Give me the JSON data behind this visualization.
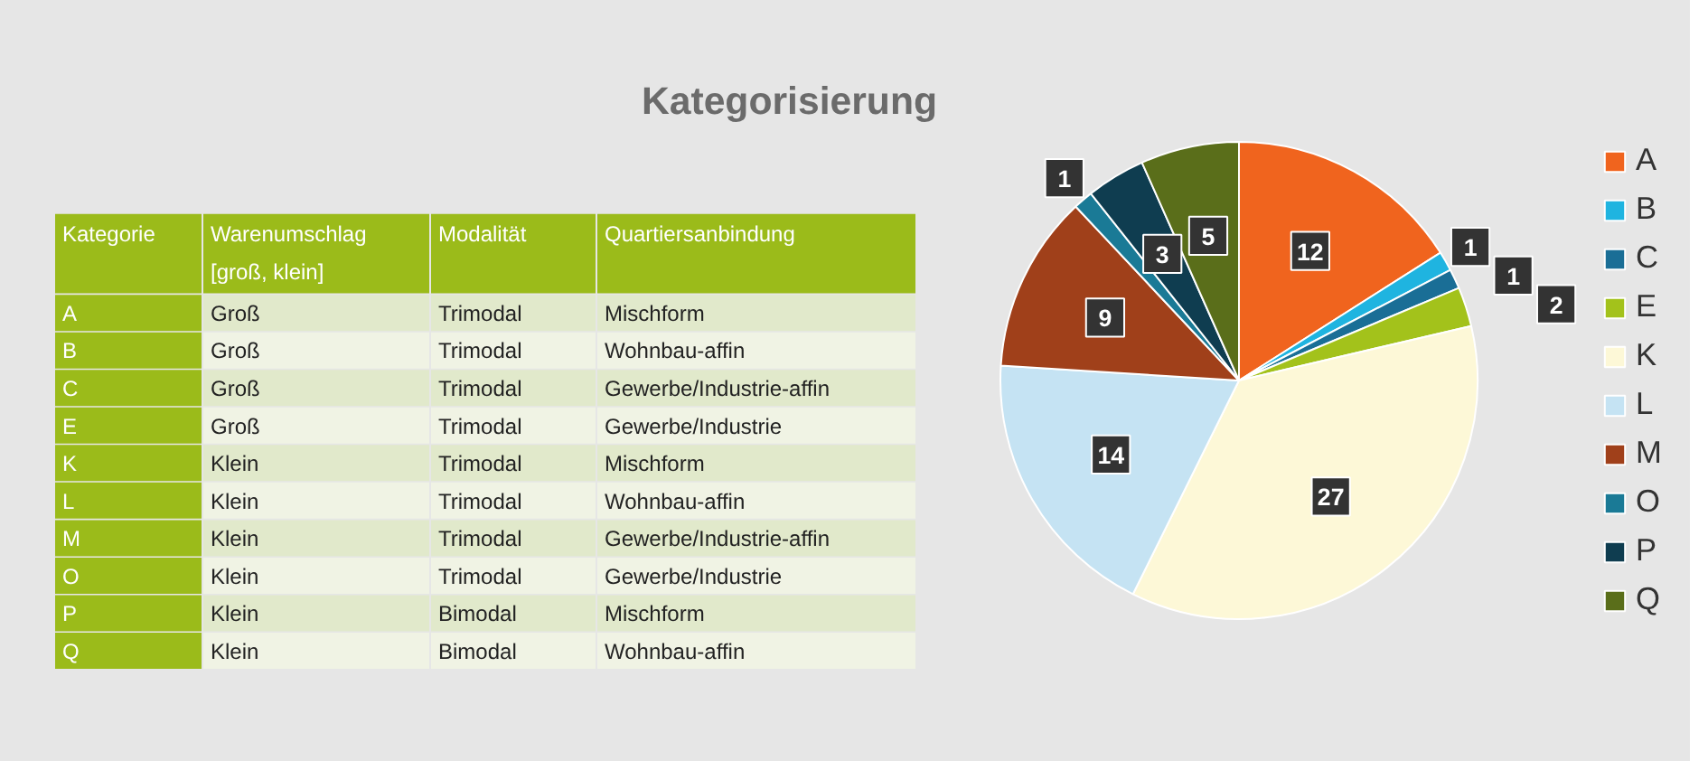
{
  "chart_data": [
    {
      "type": "other",
      "title": "Kategorisierung",
      "categories": [
        "Kategorie",
        "Warenumschlag\n[groß, klein]",
        "Modalität",
        "Quartiersanbindung"
      ],
      "annotations": [
        "A",
        "Groß",
        "Trimodal",
        "Mischform",
        "B",
        "Groß",
        "Trimodal",
        "Wohnbau-affin",
        "C",
        "Groß",
        "Trimodal",
        "Gewerbe/Industrie-affin",
        "E",
        "Groß",
        "Trimodal",
        "Gewerbe/Industrie",
        "K",
        "Klein",
        "Trimodal",
        "Mischform",
        "L",
        "Klein",
        "Trimodal",
        "Wohnbau-affin",
        "M",
        "Klein",
        "Trimodal",
        "Gewerbe/Industrie-affin",
        "O",
        "Klein",
        "Trimodal",
        "Gewerbe/Industrie",
        "P",
        "Klein",
        "Bimodal",
        "Mischform",
        "Q",
        "Klein",
        "Bimodal",
        "Wohnbau-affin"
      ]
    },
    {
      "type": "pie",
      "categories": [
        "A",
        "B",
        "C",
        "E",
        "K",
        "L",
        "M",
        "O",
        "P",
        "Q"
      ],
      "values": [
        12,
        1,
        1,
        2,
        27,
        14,
        9,
        1,
        3,
        5
      ],
      "colors": [
        "#f0641e",
        "#1fb4e0",
        "#1a6e96",
        "#a3c21b",
        "#fdf8d7",
        "#c5e3f3",
        "#a0401a",
        "#1a7a96",
        "#0f3d50",
        "#5a6e1a"
      ],
      "data_labels": true,
      "legend": "right"
    }
  ]
}
